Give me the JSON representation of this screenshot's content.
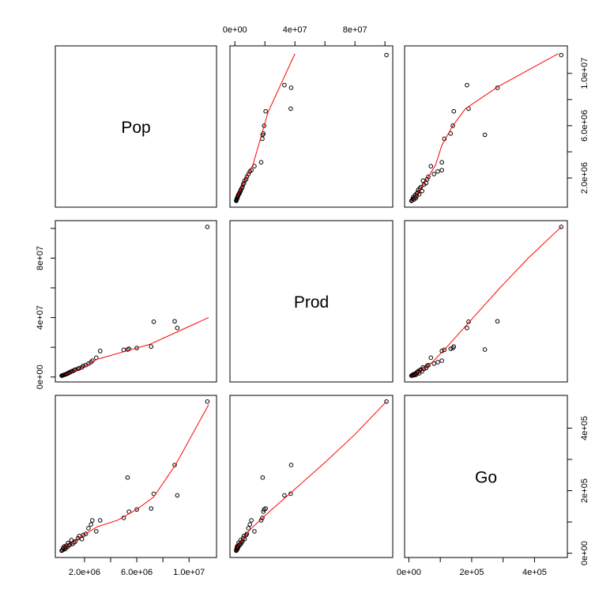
{
  "chart_data": {
    "type": "scatter",
    "kind": "scatterplot-matrix",
    "variables": [
      "Pop",
      "Prod",
      "Go"
    ],
    "ranges": {
      "Pop": [
        190000,
        11680000
      ],
      "Prod": [
        400000,
        101500000
      ],
      "Go": [
        4000,
        487000
      ]
    },
    "ticks": {
      "Pop": {
        "values": [
          2000000,
          6000000,
          10000000
        ],
        "labels": [
          "2.0e+06",
          "6.0e+06",
          "1.0e+07"
        ]
      },
      "Prod": {
        "values": [
          0,
          40000000,
          80000000
        ],
        "labels": [
          "0e+00",
          "4e+07",
          "8e+07"
        ]
      },
      "Go": {
        "values": [
          0,
          200000,
          400000
        ],
        "labels": [
          "0e+00",
          "2e+05",
          "4e+05"
        ]
      }
    },
    "minor_ticks": {
      "Pop": [
        4000000,
        8000000
      ],
      "Prod": [
        20000000,
        60000000,
        100000000
      ],
      "Go": [
        100000,
        300000
      ]
    },
    "observations": [
      {
        "Pop": 11400000,
        "Prod": 101000000,
        "Go": 485000
      },
      {
        "Pop": 8900000,
        "Prod": 37500000,
        "Go": 282000
      },
      {
        "Pop": 9100000,
        "Prod": 33000000,
        "Go": 185000
      },
      {
        "Pop": 7300000,
        "Prod": 37200000,
        "Go": 190000
      },
      {
        "Pop": 7100000,
        "Prod": 20500000,
        "Go": 143000
      },
      {
        "Pop": 5300000,
        "Prod": 18500000,
        "Go": 242000
      },
      {
        "Pop": 5400000,
        "Prod": 19000000,
        "Go": 133000
      },
      {
        "Pop": 6000000,
        "Prod": 19500000,
        "Go": 140000
      },
      {
        "Pop": 5000000,
        "Prod": 18300000,
        "Go": 113000
      },
      {
        "Pop": 3200000,
        "Prod": 17500000,
        "Go": 105000
      },
      {
        "Pop": 2600000,
        "Prod": 11000000,
        "Go": 105000
      },
      {
        "Pop": 2900000,
        "Prod": 13000000,
        "Go": 70000
      },
      {
        "Pop": 2500000,
        "Prod": 10000000,
        "Go": 92000
      },
      {
        "Pop": 2300000,
        "Prod": 9000000,
        "Go": 80000
      },
      {
        "Pop": 2100000,
        "Prod": 8000000,
        "Go": 62000
      },
      {
        "Pop": 1900000,
        "Prod": 7500000,
        "Go": 58000
      },
      {
        "Pop": 1800000,
        "Prod": 6500000,
        "Go": 45000
      },
      {
        "Pop": 1600000,
        "Prod": 6000000,
        "Go": 55000
      },
      {
        "Pop": 1500000,
        "Prod": 5500000,
        "Go": 48000
      },
      {
        "Pop": 1300000,
        "Prod": 5000000,
        "Go": 38000
      },
      {
        "Pop": 1200000,
        "Prod": 4500000,
        "Go": 35000
      },
      {
        "Pop": 1100000,
        "Prod": 4000000,
        "Go": 30000
      },
      {
        "Pop": 1000000,
        "Prod": 3800000,
        "Go": 42000
      },
      {
        "Pop": 900000,
        "Prod": 3200000,
        "Go": 28000
      },
      {
        "Pop": 800000,
        "Prod": 3000000,
        "Go": 25000
      },
      {
        "Pop": 750000,
        "Prod": 2500000,
        "Go": 33000
      },
      {
        "Pop": 700000,
        "Prod": 2300000,
        "Go": 20000
      },
      {
        "Pop": 600000,
        "Prod": 2000000,
        "Go": 24000
      },
      {
        "Pop": 550000,
        "Prod": 1800000,
        "Go": 14000
      },
      {
        "Pop": 500000,
        "Prod": 1700000,
        "Go": 18000
      },
      {
        "Pop": 450000,
        "Prod": 1500000,
        "Go": 22000
      },
      {
        "Pop": 400000,
        "Prod": 1300000,
        "Go": 12000
      },
      {
        "Pop": 350000,
        "Prod": 1200000,
        "Go": 16000
      },
      {
        "Pop": 300000,
        "Prod": 1000000,
        "Go": 10000
      },
      {
        "Pop": 250000,
        "Prod": 900000,
        "Go": 8000
      }
    ],
    "smoothers": {
      "Pop_Prod": [
        [
          500000,
          1500000
        ],
        [
          1500000,
          5000000
        ],
        [
          3000000,
          12000000
        ],
        [
          5000000,
          17000000
        ],
        [
          7000000,
          22000000
        ],
        [
          9000000,
          30000000
        ],
        [
          11500000,
          40000000
        ]
      ],
      "Pop_Go": [
        [
          300000,
          15000
        ],
        [
          1000000,
          32000
        ],
        [
          2000000,
          60000
        ],
        [
          3000000,
          85000
        ],
        [
          4500000,
          105000
        ],
        [
          6000000,
          140000
        ],
        [
          7300000,
          180000
        ],
        [
          9000000,
          285000
        ],
        [
          11500000,
          475000
        ]
      ],
      "Prod_Go": [
        [
          1000000,
          14000
        ],
        [
          5000000,
          43000
        ],
        [
          10000000,
          75000
        ],
        [
          20000000,
          120000
        ],
        [
          40000000,
          205000
        ],
        [
          60000000,
          290000
        ],
        [
          80000000,
          380000
        ],
        [
          101000000,
          485000
        ]
      ]
    },
    "smoother_color": "#ff0000",
    "point_color": "#000000",
    "grid": false,
    "legend": "none"
  }
}
